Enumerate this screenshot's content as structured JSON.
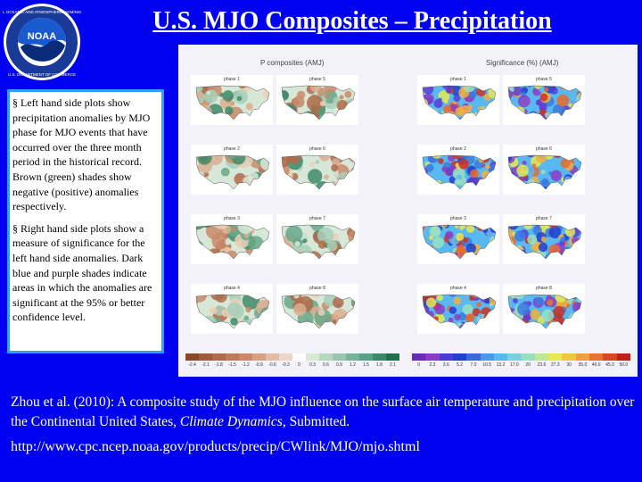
{
  "title": "U.S. MJO Composites – Precipitation",
  "bullets": [
    "§ Left hand side plots show precipitation anomalies by MJO phase for MJO events that have occurred over the three month period in the historical record. Brown (green) shades show negative (positive) anomalies respectively.",
    "§ Right hand side plots show a measure of significance for the left hand side anomalies. Dark blue and purple shades indicate areas in which the anomalies are significant at the 95% or better confidence level."
  ],
  "figure": {
    "left_heading": "P composites (AMJ)",
    "right_heading": "Significance (%) (AMJ)",
    "left_phases": [
      "phase 1",
      "phase 5",
      "phase 2",
      "phase 6",
      "phase 3",
      "phase 7",
      "phase 4",
      "phase 8"
    ],
    "right_phases": [
      "phase 1",
      "phase 5",
      "phase 2",
      "phase 6",
      "phase 3",
      "phase 7",
      "phase 4",
      "phase 8"
    ],
    "left_colorbar_labels": [
      "-2.4",
      "-2.1",
      "-1.8",
      "-1.5",
      "-1.2",
      "-0.9",
      "-0.6",
      "-0.3",
      "0",
      "0.3",
      "0.6",
      "0.9",
      "1.2",
      "1.5",
      "1.8",
      "2.1"
    ],
    "right_colorbar_labels": [
      "0",
      "2.3",
      "3.6",
      "5.2",
      "7.0",
      "10.5",
      "13.2",
      "17.0",
      "20",
      "23.6",
      "27.3",
      "30",
      "35.0",
      "40.0",
      "45.0",
      "50.0"
    ]
  },
  "reference": {
    "before": "Zhou et al. (2010): A composite study of the MJO influence on the surface air temperature and precipitation over the Continental United States, ",
    "journal": "Climate Dynamics",
    "after": ", Submitted."
  },
  "url": "http://www.cpc.ncep.noaa.gov/products/precip/CWlink/MJO/mjo.shtml",
  "colors": {
    "background": "#0000f0",
    "anomaly_brown": "#c98a6a",
    "anomaly_green": "#6aa88a",
    "significance_blue": "#2040d0",
    "significance_purple": "#8a3cc8"
  }
}
